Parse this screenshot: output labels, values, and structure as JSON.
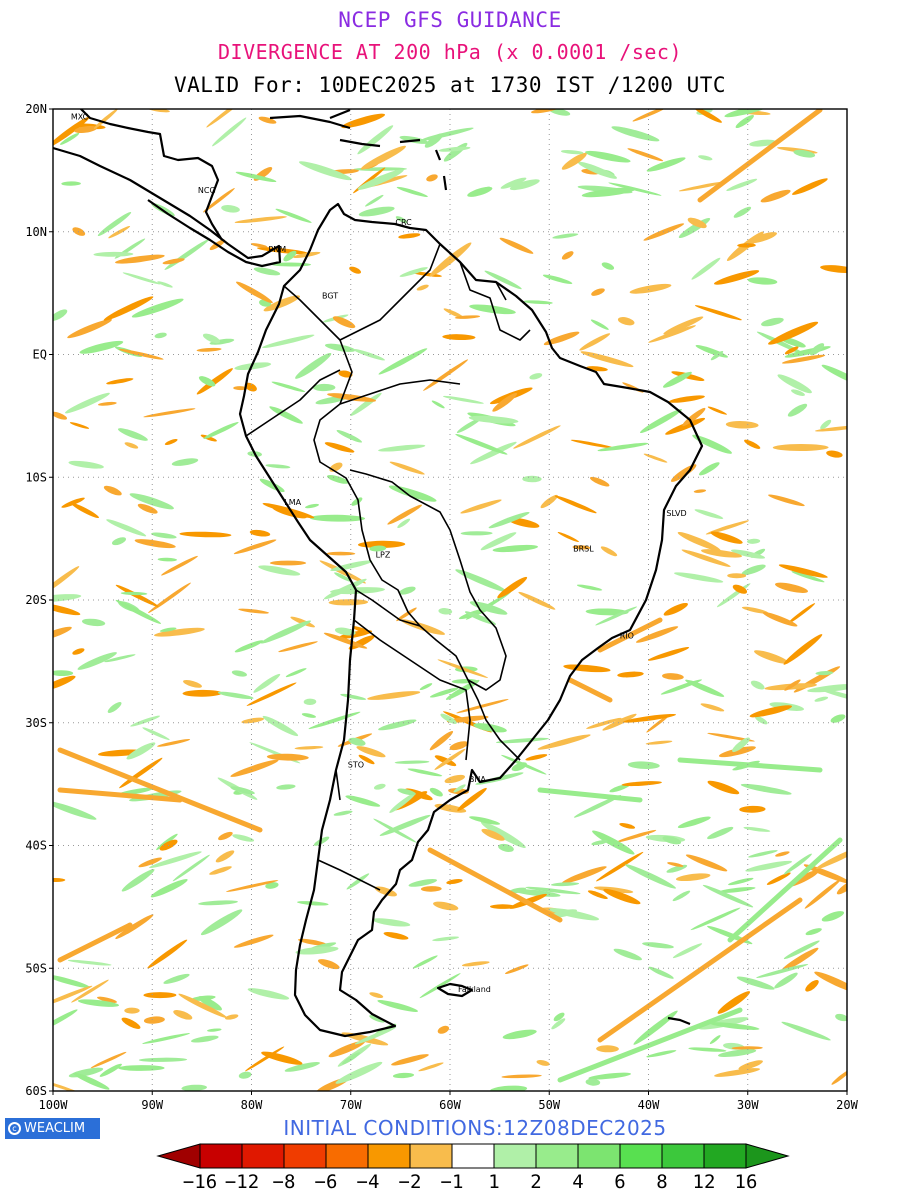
{
  "header": {
    "title": "NCEP GFS GUIDANCE",
    "subtitle": "DIVERGENCE AT 200 hPa (x 0.0001 /sec)",
    "valid": "VALID For: 10DEC2025 at 1730 IST /1200 UTC"
  },
  "colors": {
    "title": "#8a2be2",
    "subtitle": "#e8127a",
    "valid": "#000000",
    "initial": "#4169e1",
    "badge_bg": "#2b6fd8"
  },
  "map": {
    "lon_range": [
      -100,
      -20
    ],
    "lat_range": [
      -60,
      20
    ],
    "grid": true,
    "lat_labels": [
      "20N",
      "10N",
      "EQ",
      "10S",
      "20S",
      "30S",
      "40S",
      "50S",
      "60S"
    ],
    "lon_labels": [
      "100W",
      "90W",
      "80W",
      "70W",
      "60W",
      "50W",
      "40W",
      "30W",
      "20W"
    ],
    "cities": [
      {
        "name": "MXC",
        "lon": -98.5,
        "lat": 19.4
      },
      {
        "name": "NCG",
        "lon": -85.7,
        "lat": 13.4
      },
      {
        "name": "CRC",
        "lon": -65.8,
        "lat": 10.8
      },
      {
        "name": "PNM",
        "lon": -78.6,
        "lat": 8.6
      },
      {
        "name": "BGT",
        "lon": -73.2,
        "lat": 4.8
      },
      {
        "name": "LMA",
        "lon": -77.0,
        "lat": -12.0
      },
      {
        "name": "LPZ",
        "lon": -67.8,
        "lat": -16.3
      },
      {
        "name": "BRSL",
        "lon": -47.9,
        "lat": -15.8
      },
      {
        "name": "SLVD",
        "lon": -38.5,
        "lat": -12.9
      },
      {
        "name": "RIO",
        "lon": -43.2,
        "lat": -22.9
      },
      {
        "name": "STO",
        "lon": -70.6,
        "lat": -33.4
      },
      {
        "name": "BNA",
        "lon": -58.4,
        "lat": -34.6
      },
      {
        "name": "Falkland",
        "lon": -59.5,
        "lat": -51.7
      }
    ]
  },
  "legend": {
    "labels": [
      "−16",
      "−12",
      "−8",
      "−6",
      "−4",
      "−2",
      "−1",
      "1",
      "2",
      "4",
      "6",
      "8",
      "12",
      "16"
    ],
    "colors": [
      "#a00000",
      "#c80000",
      "#e01800",
      "#f03c00",
      "#f86c00",
      "#f89800",
      "#f8bc4c",
      "#ffffff",
      "#b0f0a8",
      "#98ec8c",
      "#7ce470",
      "#58e050",
      "#3cc83c",
      "#22a822",
      "#1c961c"
    ]
  },
  "footer": {
    "badge": "WEACLIM",
    "initial": "INITIAL CONDITIONS:12Z08DEC2025"
  }
}
